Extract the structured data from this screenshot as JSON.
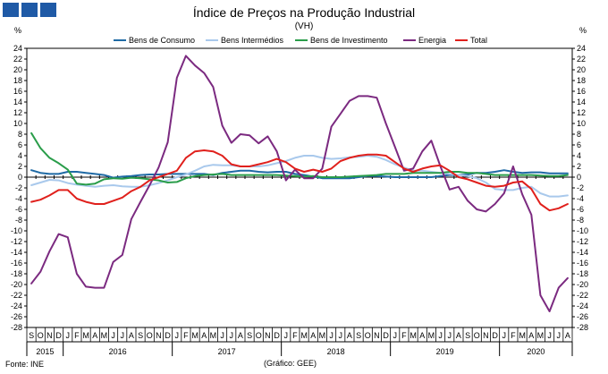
{
  "header": {
    "title": "Índice de Preços na Produção Industrial",
    "subtitle": "(VH)"
  },
  "footer": {
    "source": "Fonte: INE",
    "graphic": "(Gráfico: GEE)"
  },
  "colors": {
    "logo": "#1f5aa6"
  },
  "chart_data": {
    "type": "line",
    "title": "Índice de Preços na Produção Industrial",
    "subtitle": "(VH)",
    "ylabel_left": "%",
    "ylabel_right": "%",
    "ylim": [
      -28,
      24
    ],
    "yticks": [
      24,
      22,
      20,
      18,
      16,
      14,
      12,
      10,
      8,
      6,
      4,
      2,
      0,
      -2,
      -4,
      -6,
      -8,
      -10,
      -12,
      -14,
      -16,
      -18,
      -20,
      -22,
      -24,
      -26,
      -28
    ],
    "grid": false,
    "legend_position": "top",
    "x_months": [
      "S",
      "O",
      "N",
      "D",
      "J",
      "F",
      "M",
      "A",
      "M",
      "J",
      "J",
      "A",
      "S",
      "O",
      "N",
      "D",
      "J",
      "F",
      "M",
      "A",
      "M",
      "J",
      "J",
      "A",
      "S",
      "O",
      "N",
      "D",
      "J",
      "F",
      "M",
      "A",
      "M",
      "J",
      "J",
      "A",
      "S",
      "O",
      "N",
      "D",
      "J",
      "F",
      "M",
      "A",
      "M",
      "J",
      "J",
      "A",
      "S",
      "O",
      "N",
      "D",
      "J",
      "F",
      "M",
      "A",
      "M",
      "J",
      "J",
      "A"
    ],
    "x_years": [
      {
        "label": "2015",
        "start": 0,
        "end": 3
      },
      {
        "label": "2016",
        "start": 4,
        "end": 15
      },
      {
        "label": "2017",
        "start": 16,
        "end": 27
      },
      {
        "label": "2018",
        "start": 28,
        "end": 39
      },
      {
        "label": "2019",
        "start": 40,
        "end": 51
      },
      {
        "label": "2020",
        "start": 52,
        "end": 59
      }
    ],
    "series": [
      {
        "name": "Bens de Consumo",
        "color": "#1f6aa5",
        "values": [
          1.3,
          0.8,
          0.6,
          0.6,
          1.0,
          1.0,
          0.8,
          0.6,
          0.4,
          -0.1,
          0.1,
          0.2,
          0.4,
          0.5,
          0.5,
          0.6,
          0.6,
          0.6,
          0.6,
          0.6,
          0.4,
          0.8,
          1.0,
          1.2,
          1.2,
          1.0,
          0.9,
          1.0,
          1.0,
          0.6,
          0.4,
          0.1,
          -0.2,
          -0.2,
          -0.2,
          -0.2,
          0.0,
          0.2,
          0.2,
          0.1,
          0.0,
          0.0,
          0.0,
          0.0,
          0.0,
          0.2,
          0.4,
          0.4,
          0.5,
          0.8,
          0.8,
          1.0,
          1.3,
          1.0,
          0.8,
          0.9,
          0.9,
          0.7,
          0.7,
          0.7
        ]
      },
      {
        "name": "Bens Intermédios",
        "color": "#a9c9ec",
        "values": [
          -1.5,
          -1.0,
          -0.5,
          -0.6,
          -1.1,
          -1.4,
          -1.6,
          -1.8,
          -1.6,
          -1.5,
          -1.7,
          -1.8,
          -1.8,
          -1.5,
          -1.1,
          -0.6,
          0.0,
          0.5,
          1.2,
          2.0,
          2.3,
          2.2,
          2.2,
          2.0,
          2.0,
          2.0,
          2.2,
          2.6,
          3.0,
          3.6,
          4.0,
          4.0,
          3.6,
          3.4,
          3.5,
          3.7,
          3.8,
          4.0,
          3.8,
          3.2,
          2.4,
          1.8,
          1.2,
          1.2,
          1.0,
          0.8,
          0.6,
          0.4,
          0.2,
          -0.2,
          -1.0,
          -2.2,
          -2.4,
          -2.4,
          -2.0,
          -1.8,
          -3.0,
          -3.6,
          -3.6,
          -3.4
        ]
      },
      {
        "name": "Bens de Investimento",
        "color": "#2a9d4a",
        "values": [
          8.2,
          5.4,
          3.6,
          2.6,
          1.4,
          -1.2,
          -1.4,
          -1.2,
          -0.4,
          -0.2,
          -0.3,
          -0.1,
          -0.2,
          -0.4,
          -0.6,
          -1.0,
          -0.9,
          -0.2,
          0.2,
          0.4,
          0.5,
          0.6,
          0.4,
          0.4,
          0.4,
          0.4,
          0.4,
          0.4,
          0.3,
          0.2,
          0.1,
          0.2,
          0.0,
          0.0,
          0.0,
          0.1,
          0.2,
          0.3,
          0.4,
          0.6,
          0.6,
          0.6,
          0.8,
          0.8,
          0.8,
          0.8,
          1.0,
          1.0,
          0.8,
          0.8,
          0.6,
          0.4,
          0.4,
          0.4,
          0.4,
          0.4,
          0.3,
          0.2,
          0.2,
          0.4
        ]
      },
      {
        "name": "Energia",
        "color": "#7b2a80",
        "values": [
          -19.8,
          -17.6,
          -13.8,
          -10.6,
          -11.2,
          -18.0,
          -20.4,
          -20.6,
          -20.6,
          -15.8,
          -14.5,
          -7.8,
          -4.6,
          -1.5,
          1.8,
          6.5,
          18.5,
          22.6,
          20.8,
          19.4,
          16.8,
          9.6,
          6.4,
          8.0,
          7.8,
          6.3,
          7.6,
          4.8,
          -0.6,
          1.4,
          -0.2,
          -0.2,
          1.6,
          9.4,
          11.8,
          14.2,
          15.1,
          15.1,
          14.8,
          10.0,
          5.6,
          1.2,
          1.6,
          4.8,
          6.8,
          2.0,
          -2.3,
          -1.8,
          -4.4,
          -6.0,
          -6.4,
          -5.0,
          -3.0,
          2.0,
          -3.2,
          -7.0,
          -22.0,
          -25.0,
          -20.6,
          -18.8
        ]
      },
      {
        "name": "Total",
        "color": "#e0201c",
        "values": [
          -4.6,
          -4.2,
          -3.4,
          -2.4,
          -2.4,
          -4.0,
          -4.6,
          -5.0,
          -5.0,
          -4.4,
          -3.8,
          -2.6,
          -1.8,
          -0.6,
          0.0,
          0.6,
          1.2,
          3.6,
          4.8,
          5.0,
          4.8,
          4.0,
          2.4,
          2.0,
          2.0,
          2.4,
          2.8,
          3.4,
          2.8,
          1.6,
          1.0,
          1.4,
          1.0,
          1.6,
          3.0,
          3.6,
          4.0,
          4.2,
          4.2,
          4.0,
          2.8,
          1.6,
          1.0,
          1.6,
          2.0,
          2.2,
          1.2,
          0.0,
          -0.4,
          -1.0,
          -1.6,
          -1.8,
          -1.6,
          -1.0,
          -0.8,
          -2.2,
          -5.0,
          -6.2,
          -5.8,
          -5.0
        ]
      }
    ]
  }
}
